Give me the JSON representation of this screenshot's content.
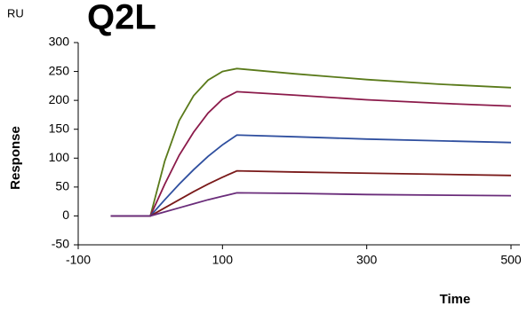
{
  "chart_data": {
    "type": "line",
    "title": "Q2L",
    "y_unit": "RU",
    "y_label": "Response",
    "x_label": "Time",
    "x": [
      -55,
      0,
      20,
      40,
      60,
      80,
      100,
      120,
      200,
      300,
      400,
      500
    ],
    "series": [
      {
        "color": "#5a7a1a",
        "values": [
          0,
          0,
          95,
          165,
          208,
          235,
          250,
          255,
          246,
          236,
          228,
          222
        ]
      },
      {
        "color": "#8b1a4a",
        "values": [
          0,
          0,
          55,
          105,
          145,
          178,
          202,
          215,
          209,
          201,
          195,
          190
        ]
      },
      {
        "color": "#2f4f9f",
        "values": [
          0,
          0,
          28,
          55,
          80,
          103,
          123,
          140,
          137,
          133,
          130,
          127
        ]
      },
      {
        "color": "#7a1a1a",
        "values": [
          0,
          0,
          14,
          28,
          42,
          55,
          67,
          78,
          76,
          74,
          72,
          70
        ]
      },
      {
        "color": "#6a2c7a",
        "values": [
          0,
          0,
          7,
          14,
          21,
          28,
          34,
          40,
          39,
          37,
          36,
          35
        ]
      }
    ],
    "xlim": [
      -100,
      500
    ],
    "xticks": [
      -100,
      100,
      300,
      500
    ],
    "ylim": [
      -50,
      300
    ],
    "yticks": [
      -50,
      0,
      50,
      100,
      150,
      200,
      250,
      300
    ]
  }
}
